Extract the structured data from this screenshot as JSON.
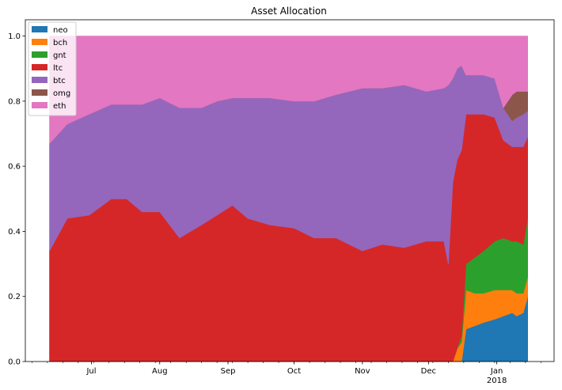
{
  "chart_data": {
    "type": "area",
    "title": "Asset Allocation",
    "xlabel": "",
    "ylabel": "",
    "ylim": [
      0,
      1.05
    ],
    "yticks": [
      "0.0",
      "0.2",
      "0.4",
      "0.6",
      "0.8",
      "1.0"
    ],
    "xlim": [
      "2017-06-01",
      "2018-01-27"
    ],
    "x_ticks": [
      {
        "date": "2017-07-01",
        "label": "Jul"
      },
      {
        "date": "2017-08-01",
        "label": "Aug"
      },
      {
        "date": "2017-09-01",
        "label": "Sep"
      },
      {
        "date": "2017-10-01",
        "label": "Oct"
      },
      {
        "date": "2017-11-01",
        "label": "Nov"
      },
      {
        "date": "2017-12-01",
        "label": "Dec"
      },
      {
        "date": "2018-01-01",
        "label": "Jan",
        "sublabel": "2018"
      }
    ],
    "grid": false,
    "legend_position": "top-left",
    "stacked": true,
    "x": [
      "2017-06-12",
      "2017-06-20",
      "2017-06-30",
      "2017-07-10",
      "2017-07-17",
      "2017-07-24",
      "2017-08-01",
      "2017-08-10",
      "2017-08-20",
      "2017-08-27",
      "2017-09-03",
      "2017-09-10",
      "2017-09-20",
      "2017-10-01",
      "2017-10-10",
      "2017-10-20",
      "2017-11-01",
      "2017-11-10",
      "2017-11-20",
      "2017-11-30",
      "2017-12-08",
      "2017-12-10",
      "2017-12-12",
      "2017-12-14",
      "2017-12-16",
      "2017-12-18",
      "2017-12-22",
      "2017-12-26",
      "2017-12-31",
      "2018-01-04",
      "2018-01-08",
      "2018-01-10",
      "2018-01-13",
      "2018-01-15"
    ],
    "series": [
      {
        "name": "neo",
        "color": "#1f77b4",
        "values": [
          0,
          0,
          0,
          0,
          0,
          0,
          0,
          0,
          0,
          0,
          0,
          0,
          0,
          0,
          0,
          0,
          0,
          0,
          0,
          0,
          0,
          0,
          0,
          0,
          0,
          0.1,
          0.11,
          0.12,
          0.13,
          0.14,
          0.15,
          0.14,
          0.15,
          0.2
        ]
      },
      {
        "name": "bch",
        "color": "#ff7f0e",
        "values": [
          0,
          0,
          0,
          0,
          0,
          0,
          0,
          0,
          0,
          0,
          0,
          0,
          0,
          0,
          0,
          0,
          0,
          0,
          0,
          0,
          0,
          0,
          0,
          0.04,
          0.06,
          0.12,
          0.1,
          0.09,
          0.09,
          0.08,
          0.07,
          0.07,
          0.06,
          0.06
        ]
      },
      {
        "name": "gnt",
        "color": "#2ca02c",
        "values": [
          0,
          0,
          0,
          0,
          0,
          0,
          0,
          0,
          0,
          0,
          0,
          0,
          0,
          0,
          0,
          0,
          0,
          0,
          0,
          0,
          0,
          0,
          0,
          0,
          0.02,
          0.08,
          0.11,
          0.13,
          0.15,
          0.16,
          0.15,
          0.16,
          0.15,
          0.18
        ]
      },
      {
        "name": "ltc",
        "color": "#d62728",
        "values": [
          0.34,
          0.44,
          0.45,
          0.5,
          0.5,
          0.46,
          0.46,
          0.38,
          0.42,
          0.45,
          0.48,
          0.44,
          0.42,
          0.41,
          0.38,
          0.38,
          0.34,
          0.36,
          0.35,
          0.37,
          0.37,
          0.3,
          0.55,
          0.58,
          0.57,
          0.46,
          0.44,
          0.42,
          0.38,
          0.3,
          0.29,
          0.29,
          0.3,
          0.25
        ]
      },
      {
        "name": "btc",
        "color": "#9467bd",
        "values": [
          0.33,
          0.29,
          0.31,
          0.29,
          0.29,
          0.33,
          0.35,
          0.4,
          0.36,
          0.35,
          0.33,
          0.37,
          0.39,
          0.39,
          0.42,
          0.44,
          0.5,
          0.48,
          0.5,
          0.46,
          0.47,
          0.55,
          0.32,
          0.28,
          0.26,
          0.12,
          0.12,
          0.12,
          0.12,
          0.1,
          0.08,
          0.09,
          0.1,
          0.08
        ]
      },
      {
        "name": "omg",
        "color": "#8c564b",
        "values": [
          0,
          0,
          0,
          0,
          0,
          0,
          0,
          0,
          0,
          0,
          0,
          0,
          0,
          0,
          0,
          0,
          0,
          0,
          0,
          0,
          0,
          0,
          0,
          0,
          0,
          0,
          0,
          0,
          0,
          0,
          0.08,
          0.08,
          0.07,
          0.06
        ]
      },
      {
        "name": "eth",
        "color": "#e377c2",
        "values": [
          0.33,
          0.27,
          0.24,
          0.21,
          0.21,
          0.21,
          0.19,
          0.22,
          0.22,
          0.2,
          0.19,
          0.19,
          0.19,
          0.2,
          0.2,
          0.18,
          0.16,
          0.16,
          0.15,
          0.17,
          0.16,
          0.15,
          0.13,
          0.1,
          0.09,
          0.12,
          0.12,
          0.12,
          0.13,
          0.22,
          0.18,
          0.17,
          0.17,
          0.17
        ]
      }
    ]
  }
}
